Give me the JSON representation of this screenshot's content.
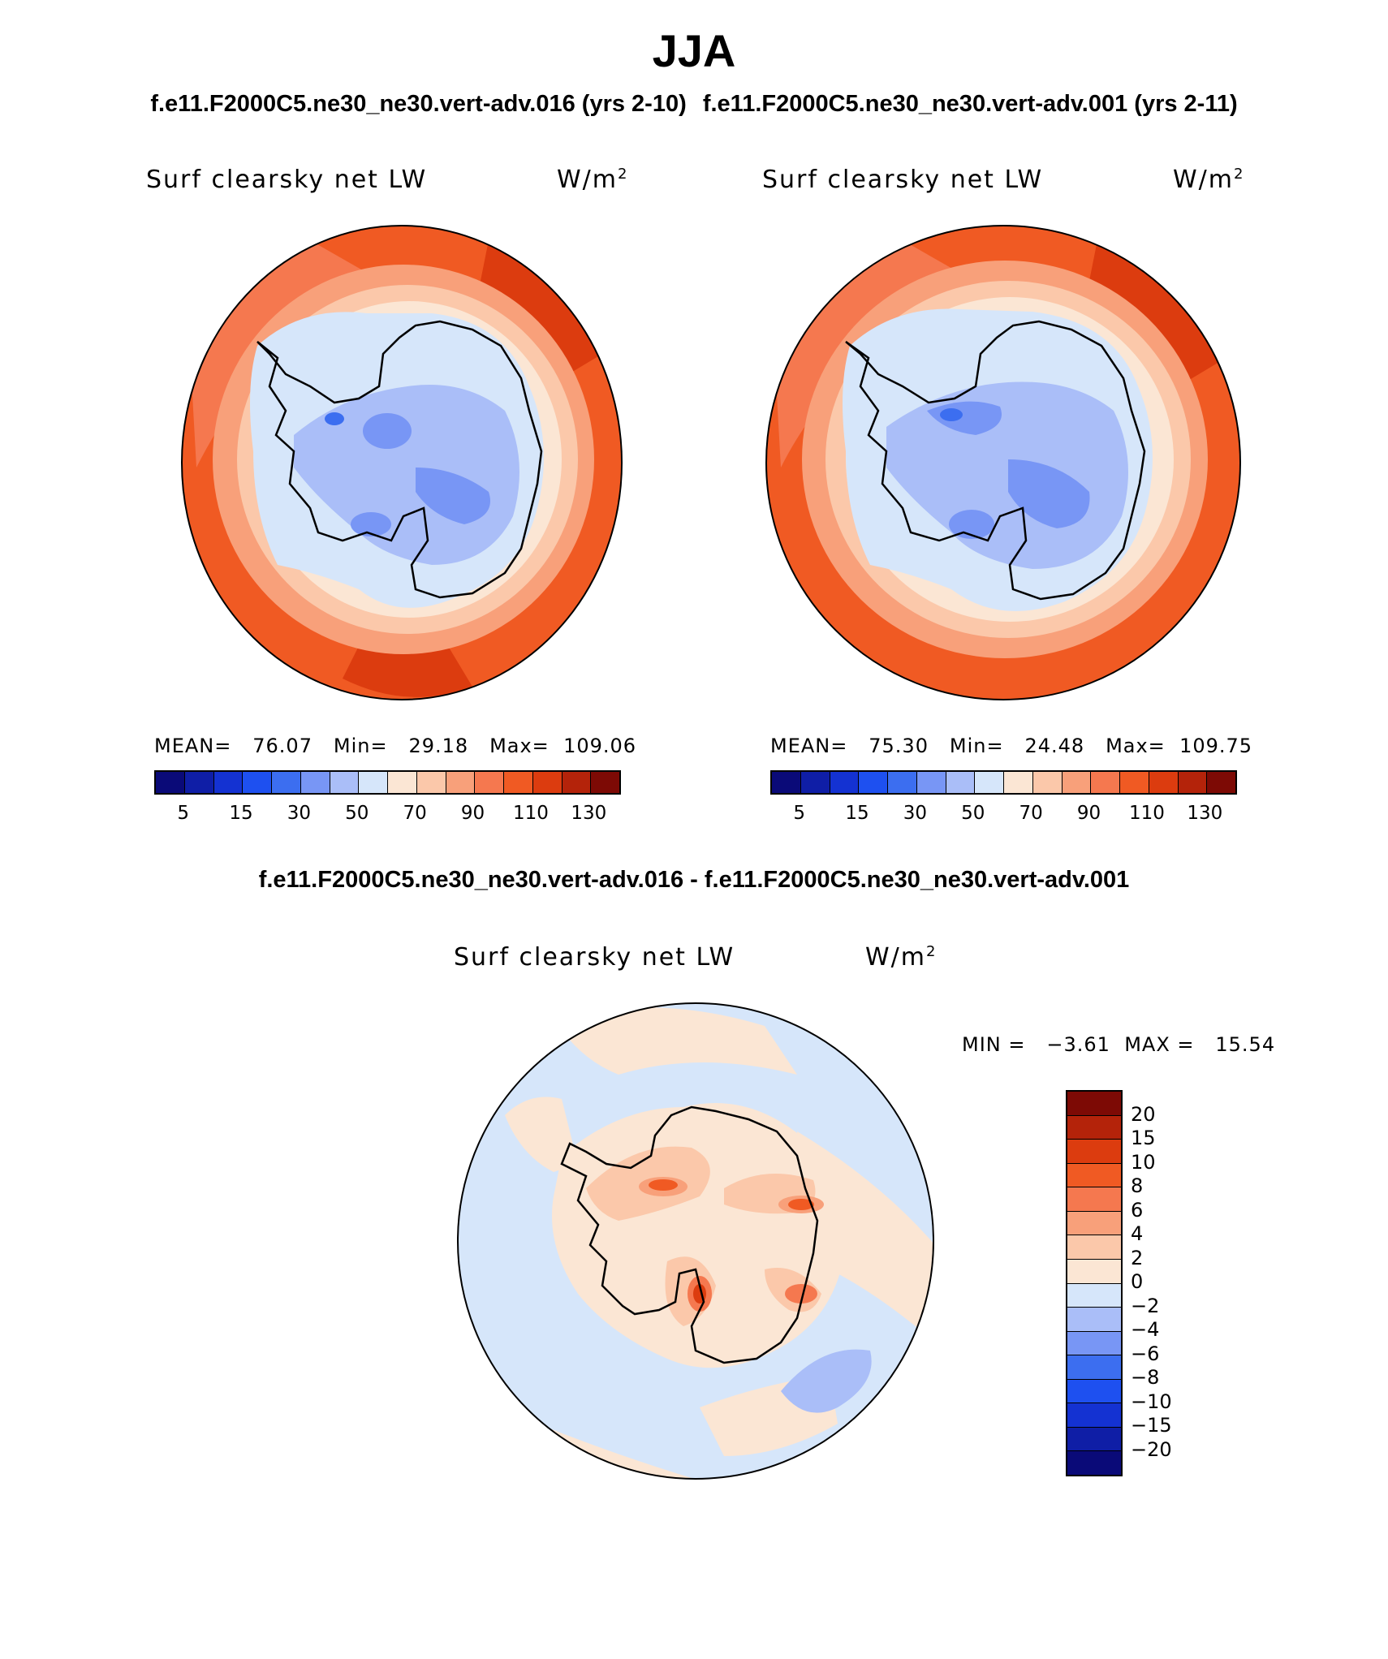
{
  "title": "JJA",
  "runs": {
    "left": "f.e11.F2000C5.ne30_ne30.vert-adv.016 (yrs 2-10)",
    "right": "f.e11.F2000C5.ne30_ne30.vert-adv.001 (yrs 2-11)"
  },
  "diff_title": "f.e11.F2000C5.ne30_ne30.vert-adv.016 - f.e11.F2000C5.ne30_ne30.vert-adv.001",
  "panels": {
    "left": {
      "variable": "Surf clearsky net LW",
      "units_base": "W/m",
      "units_exp": "2",
      "mean_label": "MEAN=",
      "mean": "76.07",
      "min_label": "Min=",
      "min": "29.18",
      "max_label": "Max=",
      "max": "109.06"
    },
    "right": {
      "variable": "Surf clearsky net LW",
      "units_base": "W/m",
      "units_exp": "2",
      "mean_label": "MEAN=",
      "mean": "75.30",
      "min_label": "Min=",
      "min": "24.48",
      "max_label": "Max=",
      "max": "109.75"
    },
    "diff": {
      "variable": "Surf clearsky net LW",
      "units_base": "W/m",
      "units_exp": "2",
      "min_label": "MIN =",
      "min": "−3.61",
      "max_label": "MAX =",
      "max": "15.54"
    }
  },
  "colorbar_main": {
    "colors": [
      "#0a0a78",
      "#0f1ea6",
      "#1432d2",
      "#1e50f0",
      "#3c6ef0",
      "#7896f5",
      "#aabef8",
      "#d6e6fa",
      "#fbe6d4",
      "#fbc8aa",
      "#f8a07a",
      "#f5784f",
      "#f05a23",
      "#dc3c0f",
      "#b4230a",
      "#7d0a05"
    ],
    "tick_labels": [
      "5",
      "15",
      "30",
      "50",
      "70",
      "90",
      "110",
      "130"
    ]
  },
  "colorbar_diff": {
    "colors": [
      "#7d0a05",
      "#b4230a",
      "#dc3c0f",
      "#f05a23",
      "#f5784f",
      "#f8a07a",
      "#fbc8aa",
      "#fbe6d4",
      "#d6e6fa",
      "#aabef8",
      "#7896f5",
      "#3c6ef0",
      "#1e50f0",
      "#1432d2",
      "#0f1ea6",
      "#0a0a78"
    ],
    "tick_labels": [
      "20",
      "15",
      "10",
      "8",
      "6",
      "4",
      "2",
      "0",
      "−2",
      "−4",
      "−6",
      "−8",
      "−10",
      "−15",
      "−20"
    ]
  }
}
